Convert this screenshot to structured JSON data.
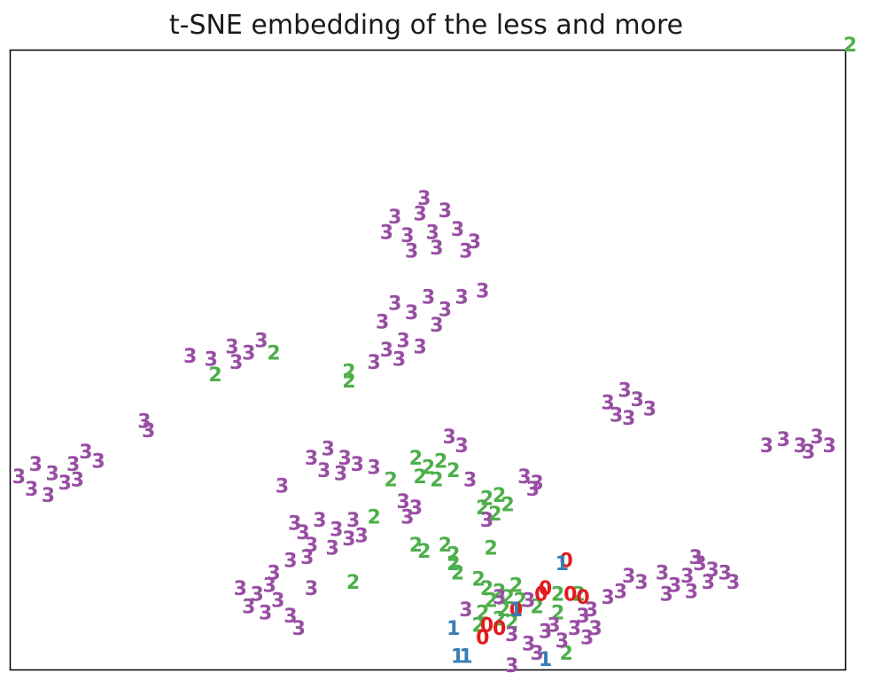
{
  "chart_data": {
    "type": "scatter",
    "title": "t-SNE embedding of the less and more",
    "xlabel": "",
    "ylabel": "",
    "xlim": [
      0,
      100
    ],
    "ylim": [
      0,
      100
    ],
    "grid": false,
    "axis_ticks": false,
    "marker": "digit-label",
    "colors": {
      "0": "#e41a1c",
      "1": "#377eb8",
      "2": "#4daf4a",
      "3": "#984ea3"
    },
    "points": [
      {
        "x": 100.5,
        "y": 100.8,
        "label": "2"
      },
      {
        "x": 46,
        "y": 73,
        "label": "3"
      },
      {
        "x": 47.5,
        "y": 70,
        "label": "3"
      },
      {
        "x": 49,
        "y": 73.5,
        "label": "3"
      },
      {
        "x": 50.5,
        "y": 70.5,
        "label": "3"
      },
      {
        "x": 52,
        "y": 74,
        "label": "3"
      },
      {
        "x": 53.5,
        "y": 71,
        "label": "3"
      },
      {
        "x": 48,
        "y": 67.5,
        "label": "3"
      },
      {
        "x": 51,
        "y": 68,
        "label": "3"
      },
      {
        "x": 54.5,
        "y": 67.5,
        "label": "3"
      },
      {
        "x": 45,
        "y": 70.5,
        "label": "3"
      },
      {
        "x": 49.5,
        "y": 76,
        "label": "3"
      },
      {
        "x": 55.5,
        "y": 69,
        "label": "3"
      },
      {
        "x": 46,
        "y": 59,
        "label": "3"
      },
      {
        "x": 48,
        "y": 57.5,
        "label": "3"
      },
      {
        "x": 50,
        "y": 60,
        "label": "3"
      },
      {
        "x": 52,
        "y": 58,
        "label": "3"
      },
      {
        "x": 54,
        "y": 60,
        "label": "3"
      },
      {
        "x": 51,
        "y": 55.5,
        "label": "3"
      },
      {
        "x": 56.5,
        "y": 61,
        "label": "3"
      },
      {
        "x": 44.5,
        "y": 56,
        "label": "3"
      },
      {
        "x": 45,
        "y": 51.5,
        "label": "3"
      },
      {
        "x": 47,
        "y": 53,
        "label": "3"
      },
      {
        "x": 49,
        "y": 52,
        "label": "3"
      },
      {
        "x": 46.5,
        "y": 50,
        "label": "3"
      },
      {
        "x": 43.5,
        "y": 49.5,
        "label": "3"
      },
      {
        "x": 21.5,
        "y": 50.5,
        "label": "3"
      },
      {
        "x": 24,
        "y": 50,
        "label": "3"
      },
      {
        "x": 26.5,
        "y": 52,
        "label": "3"
      },
      {
        "x": 28.5,
        "y": 51,
        "label": "3"
      },
      {
        "x": 30,
        "y": 53,
        "label": "3"
      },
      {
        "x": 27,
        "y": 49.5,
        "label": "3"
      },
      {
        "x": 31.5,
        "y": 51,
        "label": "2"
      },
      {
        "x": 24.5,
        "y": 47.5,
        "label": "2"
      },
      {
        "x": 16,
        "y": 40,
        "label": "3"
      },
      {
        "x": 16.5,
        "y": 38.5,
        "label": "3"
      },
      {
        "x": 1,
        "y": 31,
        "label": "3"
      },
      {
        "x": 3,
        "y": 33,
        "label": "3"
      },
      {
        "x": 5,
        "y": 31.5,
        "label": "3"
      },
      {
        "x": 2.5,
        "y": 29,
        "label": "3"
      },
      {
        "x": 4.5,
        "y": 28,
        "label": "3"
      },
      {
        "x": 6.5,
        "y": 30,
        "label": "3"
      },
      {
        "x": 7.5,
        "y": 33,
        "label": "3"
      },
      {
        "x": 9,
        "y": 35,
        "label": "3"
      },
      {
        "x": 10.5,
        "y": 33.5,
        "label": "3"
      },
      {
        "x": 8,
        "y": 30.5,
        "label": "3"
      },
      {
        "x": 71.5,
        "y": 43,
        "label": "3"
      },
      {
        "x": 73.5,
        "y": 45,
        "label": "3"
      },
      {
        "x": 75,
        "y": 43.5,
        "label": "3"
      },
      {
        "x": 76.5,
        "y": 42,
        "label": "3"
      },
      {
        "x": 74,
        "y": 40.5,
        "label": "3"
      },
      {
        "x": 72.5,
        "y": 41,
        "label": "3"
      },
      {
        "x": 90.5,
        "y": 36,
        "label": "3"
      },
      {
        "x": 92.5,
        "y": 37,
        "label": "3"
      },
      {
        "x": 94.5,
        "y": 36,
        "label": "3"
      },
      {
        "x": 96.5,
        "y": 37.5,
        "label": "3"
      },
      {
        "x": 98,
        "y": 36,
        "label": "3"
      },
      {
        "x": 95.5,
        "y": 35,
        "label": "3"
      },
      {
        "x": 40.5,
        "y": 48,
        "label": "2"
      },
      {
        "x": 40.5,
        "y": 46.5,
        "label": "2"
      },
      {
        "x": 36,
        "y": 34,
        "label": "3"
      },
      {
        "x": 38,
        "y": 35.5,
        "label": "3"
      },
      {
        "x": 40,
        "y": 34,
        "label": "3"
      },
      {
        "x": 37.5,
        "y": 32,
        "label": "3"
      },
      {
        "x": 39.5,
        "y": 31.5,
        "label": "3"
      },
      {
        "x": 41.5,
        "y": 33,
        "label": "3"
      },
      {
        "x": 43.5,
        "y": 32.5,
        "label": "3"
      },
      {
        "x": 32.5,
        "y": 29.5,
        "label": "3"
      },
      {
        "x": 52.5,
        "y": 37.5,
        "label": "3"
      },
      {
        "x": 54,
        "y": 36,
        "label": "3"
      },
      {
        "x": 48.5,
        "y": 34,
        "label": "2"
      },
      {
        "x": 50,
        "y": 32.5,
        "label": "2"
      },
      {
        "x": 51.5,
        "y": 33.5,
        "label": "2"
      },
      {
        "x": 49,
        "y": 31,
        "label": "2"
      },
      {
        "x": 51,
        "y": 30.5,
        "label": "2"
      },
      {
        "x": 53,
        "y": 32,
        "label": "2"
      },
      {
        "x": 55,
        "y": 30.5,
        "label": "3"
      },
      {
        "x": 45.5,
        "y": 30.5,
        "label": "2"
      },
      {
        "x": 61.5,
        "y": 31,
        "label": "3"
      },
      {
        "x": 63,
        "y": 30,
        "label": "3"
      },
      {
        "x": 62.5,
        "y": 29,
        "label": "3"
      },
      {
        "x": 47,
        "y": 27,
        "label": "3"
      },
      {
        "x": 48.5,
        "y": 26,
        "label": "3"
      },
      {
        "x": 47.5,
        "y": 24.5,
        "label": "3"
      },
      {
        "x": 57,
        "y": 27.5,
        "label": "2"
      },
      {
        "x": 58.5,
        "y": 28,
        "label": "2"
      },
      {
        "x": 56.5,
        "y": 26,
        "label": "2"
      },
      {
        "x": 58,
        "y": 25,
        "label": "2"
      },
      {
        "x": 59.5,
        "y": 26.5,
        "label": "2"
      },
      {
        "x": 57,
        "y": 24,
        "label": "3"
      },
      {
        "x": 43.5,
        "y": 24.5,
        "label": "2"
      },
      {
        "x": 35,
        "y": 22,
        "label": "3"
      },
      {
        "x": 37,
        "y": 24,
        "label": "3"
      },
      {
        "x": 39,
        "y": 22.5,
        "label": "3"
      },
      {
        "x": 41,
        "y": 24,
        "label": "3"
      },
      {
        "x": 36,
        "y": 20,
        "label": "3"
      },
      {
        "x": 38.5,
        "y": 19.5,
        "label": "3"
      },
      {
        "x": 40.5,
        "y": 21,
        "label": "3"
      },
      {
        "x": 33.5,
        "y": 17.5,
        "label": "3"
      },
      {
        "x": 35.5,
        "y": 18,
        "label": "3"
      },
      {
        "x": 34,
        "y": 23.5,
        "label": "3"
      },
      {
        "x": 42,
        "y": 21.5,
        "label": "3"
      },
      {
        "x": 27.5,
        "y": 13,
        "label": "3"
      },
      {
        "x": 29.5,
        "y": 12,
        "label": "3"
      },
      {
        "x": 31,
        "y": 13.5,
        "label": "3"
      },
      {
        "x": 28.5,
        "y": 10,
        "label": "3"
      },
      {
        "x": 30.5,
        "y": 9,
        "label": "3"
      },
      {
        "x": 32,
        "y": 11,
        "label": "3"
      },
      {
        "x": 31.5,
        "y": 15.5,
        "label": "3"
      },
      {
        "x": 33.5,
        "y": 8.5,
        "label": "3"
      },
      {
        "x": 34.5,
        "y": 6.5,
        "label": "3"
      },
      {
        "x": 36,
        "y": 13,
        "label": "3"
      },
      {
        "x": 48.5,
        "y": 20,
        "label": "2"
      },
      {
        "x": 52,
        "y": 20,
        "label": "2"
      },
      {
        "x": 53,
        "y": 18.5,
        "label": "2"
      },
      {
        "x": 49.5,
        "y": 19,
        "label": "2"
      },
      {
        "x": 57.5,
        "y": 19.5,
        "label": "2"
      },
      {
        "x": 53,
        "y": 17,
        "label": "2"
      },
      {
        "x": 53.5,
        "y": 15.5,
        "label": "2"
      },
      {
        "x": 41,
        "y": 14,
        "label": "2"
      },
      {
        "x": 56,
        "y": 14.5,
        "label": "2"
      },
      {
        "x": 57,
        "y": 13,
        "label": "2"
      },
      {
        "x": 58.5,
        "y": 12.5,
        "label": "2"
      },
      {
        "x": 60.5,
        "y": 13.5,
        "label": "2"
      },
      {
        "x": 59.5,
        "y": 11.5,
        "label": "2"
      },
      {
        "x": 57.5,
        "y": 11,
        "label": "2"
      },
      {
        "x": 59,
        "y": 9.5,
        "label": "2"
      },
      {
        "x": 61,
        "y": 11,
        "label": "2"
      },
      {
        "x": 58.5,
        "y": 8,
        "label": "2"
      },
      {
        "x": 60,
        "y": 7.5,
        "label": "2"
      },
      {
        "x": 56.5,
        "y": 9,
        "label": "2"
      },
      {
        "x": 63,
        "y": 10,
        "label": "2"
      },
      {
        "x": 65.5,
        "y": 12,
        "label": "2"
      },
      {
        "x": 68,
        "y": 12,
        "label": "2"
      },
      {
        "x": 65.5,
        "y": 9,
        "label": "2"
      },
      {
        "x": 56,
        "y": 7,
        "label": "2"
      },
      {
        "x": 66.5,
        "y": 2.5,
        "label": "2"
      },
      {
        "x": 60,
        "y": 0.5,
        "label": "3"
      },
      {
        "x": 66.5,
        "y": 17.5,
        "label": "0"
      },
      {
        "x": 64,
        "y": 13,
        "label": "0"
      },
      {
        "x": 63.5,
        "y": 12,
        "label": "0"
      },
      {
        "x": 67,
        "y": 12,
        "label": "0"
      },
      {
        "x": 68.5,
        "y": 11.5,
        "label": "0"
      },
      {
        "x": 60.5,
        "y": 9.5,
        "label": "0"
      },
      {
        "x": 57,
        "y": 7,
        "label": "0"
      },
      {
        "x": 58.5,
        "y": 6.5,
        "label": "0"
      },
      {
        "x": 56.5,
        "y": 5,
        "label": "0"
      },
      {
        "x": 66,
        "y": 17,
        "label": "1"
      },
      {
        "x": 60.5,
        "y": 9.5,
        "label": "1"
      },
      {
        "x": 53,
        "y": 6.5,
        "label": "1"
      },
      {
        "x": 53.5,
        "y": 2,
        "label": "1"
      },
      {
        "x": 54.5,
        "y": 2,
        "label": "1"
      },
      {
        "x": 64,
        "y": 1.5,
        "label": "1"
      },
      {
        "x": 54.5,
        "y": 9.5,
        "label": "3"
      },
      {
        "x": 58.5,
        "y": 11.5,
        "label": "3"
      },
      {
        "x": 62,
        "y": 11,
        "label": "3"
      },
      {
        "x": 60,
        "y": 5.5,
        "label": "3"
      },
      {
        "x": 62,
        "y": 4,
        "label": "3"
      },
      {
        "x": 64,
        "y": 6,
        "label": "3"
      },
      {
        "x": 66,
        "y": 4.5,
        "label": "3"
      },
      {
        "x": 67.5,
        "y": 6.5,
        "label": "3"
      },
      {
        "x": 69,
        "y": 5,
        "label": "3"
      },
      {
        "x": 63,
        "y": 2.5,
        "label": "3"
      },
      {
        "x": 65,
        "y": 7,
        "label": "3"
      },
      {
        "x": 68.5,
        "y": 8.5,
        "label": "3"
      },
      {
        "x": 70,
        "y": 6.5,
        "label": "3"
      },
      {
        "x": 69.5,
        "y": 9.5,
        "label": "3"
      },
      {
        "x": 71.5,
        "y": 11.5,
        "label": "3"
      },
      {
        "x": 74,
        "y": 15,
        "label": "3"
      },
      {
        "x": 75.5,
        "y": 14,
        "label": "3"
      },
      {
        "x": 73,
        "y": 12.5,
        "label": "3"
      },
      {
        "x": 78,
        "y": 15.5,
        "label": "3"
      },
      {
        "x": 79.5,
        "y": 13.5,
        "label": "3"
      },
      {
        "x": 78.5,
        "y": 12,
        "label": "3"
      },
      {
        "x": 81,
        "y": 15,
        "label": "3"
      },
      {
        "x": 82.5,
        "y": 17,
        "label": "3"
      },
      {
        "x": 84,
        "y": 16,
        "label": "3"
      },
      {
        "x": 83.5,
        "y": 14,
        "label": "3"
      },
      {
        "x": 85.5,
        "y": 15.5,
        "label": "3"
      },
      {
        "x": 81.5,
        "y": 12.5,
        "label": "3"
      },
      {
        "x": 82,
        "y": 18,
        "label": "3"
      },
      {
        "x": 86.5,
        "y": 14,
        "label": "3"
      }
    ]
  }
}
